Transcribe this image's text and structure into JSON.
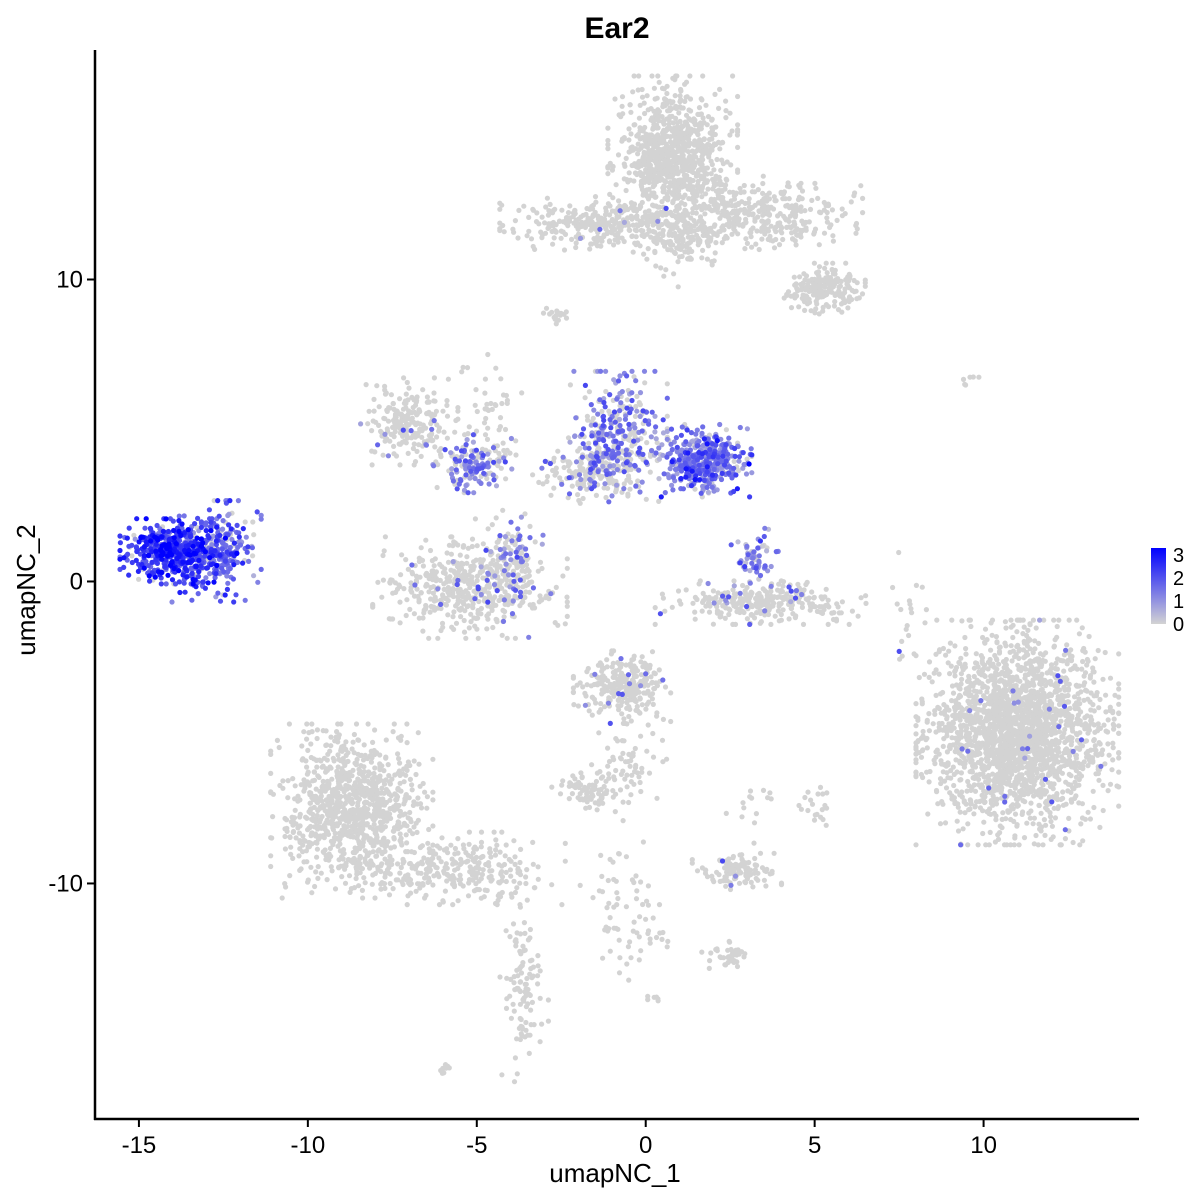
{
  "chart_data": {
    "type": "scatter",
    "title": "Ear2",
    "xlabel": "umapNC_1",
    "ylabel": "umapNC_2",
    "xlim": [
      -16.3,
      14.6
    ],
    "ylim": [
      -17.8,
      17.6
    ],
    "x_ticks": [
      -15,
      -10,
      -5,
      0,
      5,
      10
    ],
    "x_tick_labels": [
      "-15",
      "-10",
      "-5",
      "0",
      "5",
      "10"
    ],
    "y_ticks": [
      -10,
      0,
      10
    ],
    "y_tick_labels": [
      "-10",
      "0",
      "10"
    ],
    "grid": false,
    "colors": {
      "low": "#d3d3d3",
      "high": "#0000ff"
    },
    "legend": {
      "placement": "right",
      "min": 0,
      "max": 3.3,
      "ticks": [
        0,
        1,
        2,
        3
      ],
      "tick_labels": [
        "0",
        "1",
        "2",
        "3"
      ]
    },
    "clusters": [
      {
        "cx": 11.0,
        "cy": -5.0,
        "sx": 1.25,
        "sy": 1.55,
        "n": 2200,
        "expr": 0.02,
        "seed": 11
      },
      {
        "cx": -8.7,
        "cy": -7.6,
        "sx": 1.0,
        "sy": 1.2,
        "n": 1000,
        "expr": 0.0,
        "seed": 12
      },
      {
        "cx": -5.5,
        "cy": -9.5,
        "sx": 1.3,
        "sy": 0.5,
        "n": 260,
        "expr": 0.0,
        "seed": 13
      },
      {
        "cx": -3.6,
        "cy": -13.5,
        "sx": 0.3,
        "sy": 1.4,
        "n": 110,
        "expr": 0.0,
        "seed": 14
      },
      {
        "cx": 0.8,
        "cy": 14.1,
        "sx": 0.8,
        "sy": 1.1,
        "n": 900,
        "expr": 0.0,
        "seed": 15
      },
      {
        "cx": 3.3,
        "cy": 12.1,
        "sx": 1.3,
        "sy": 0.55,
        "n": 360,
        "expr": 0.0,
        "seed": 16
      },
      {
        "cx": 5.3,
        "cy": 9.7,
        "sx": 0.5,
        "sy": 0.35,
        "n": 200,
        "expr": 0.0,
        "seed": 17
      },
      {
        "cx": -1.2,
        "cy": 11.8,
        "sx": 1.3,
        "sy": 0.4,
        "n": 320,
        "expr": 0.02,
        "seed": 18
      },
      {
        "cx": 1.1,
        "cy": 11.2,
        "sx": 0.5,
        "sy": 0.6,
        "n": 120,
        "expr": 0.0,
        "seed": 19
      },
      {
        "cx": -14.0,
        "cy": 1.0,
        "sx": 0.65,
        "sy": 0.45,
        "n": 480,
        "expr": 2.4,
        "seed": 20
      },
      {
        "cx": -12.7,
        "cy": 1.0,
        "sx": 0.55,
        "sy": 0.7,
        "n": 260,
        "expr": 1.7,
        "seed": 21
      },
      {
        "cx": 1.7,
        "cy": 4.0,
        "sx": 0.6,
        "sy": 0.5,
        "n": 420,
        "expr": 1.4,
        "seed": 22
      },
      {
        "cx": -0.8,
        "cy": 4.8,
        "sx": 0.6,
        "sy": 0.9,
        "n": 320,
        "expr": 0.7,
        "seed": 23
      },
      {
        "cx": -1.7,
        "cy": 3.7,
        "sx": 0.8,
        "sy": 0.5,
        "n": 160,
        "expr": 0.3,
        "seed": 24
      },
      {
        "cx": -7.0,
        "cy": 5.3,
        "sx": 0.6,
        "sy": 0.6,
        "n": 210,
        "expr": 0.05,
        "seed": 25
      },
      {
        "cx": -5.1,
        "cy": 3.9,
        "sx": 0.5,
        "sy": 0.4,
        "n": 130,
        "expr": 0.8,
        "seed": 26
      },
      {
        "cx": -5.2,
        "cy": -0.2,
        "sx": 1.2,
        "sy": 0.7,
        "n": 480,
        "expr": 0.05,
        "seed": 27
      },
      {
        "cx": -4.0,
        "cy": 0.8,
        "sx": 0.4,
        "sy": 0.6,
        "n": 100,
        "expr": 0.6,
        "seed": 28
      },
      {
        "cx": 3.4,
        "cy": -0.7,
        "sx": 1.3,
        "sy": 0.3,
        "n": 300,
        "expr": 0.05,
        "seed": 29
      },
      {
        "cx": 3.2,
        "cy": 0.8,
        "sx": 0.3,
        "sy": 0.4,
        "n": 60,
        "expr": 1.2,
        "seed": 30
      },
      {
        "cx": -0.7,
        "cy": -3.5,
        "sx": 0.6,
        "sy": 0.5,
        "n": 260,
        "expr": 0.05,
        "seed": 31
      },
      {
        "cx": -1.7,
        "cy": -6.9,
        "sx": 0.45,
        "sy": 0.3,
        "n": 80,
        "expr": 0.0,
        "seed": 32
      },
      {
        "cx": 2.7,
        "cy": -9.6,
        "sx": 0.55,
        "sy": 0.25,
        "n": 110,
        "expr": 0.05,
        "seed": 33
      },
      {
        "cx": 2.5,
        "cy": -12.4,
        "sx": 0.35,
        "sy": 0.2,
        "n": 40,
        "expr": 0.0,
        "seed": 34
      },
      {
        "cx": -0.5,
        "cy": -6.0,
        "sx": 0.6,
        "sy": 0.8,
        "n": 60,
        "expr": 0.0,
        "seed": 35
      },
      {
        "cx": -0.5,
        "cy": -10.8,
        "sx": 0.6,
        "sy": 1.0,
        "n": 70,
        "expr": 0.0,
        "seed": 36
      },
      {
        "cx": 7.8,
        "cy": -1.2,
        "sx": 0.3,
        "sy": 0.9,
        "n": 20,
        "expr": 0.05,
        "seed": 37
      },
      {
        "cx": -4.5,
        "cy": 5.0,
        "sx": 0.4,
        "sy": 1.4,
        "n": 60,
        "expr": 0.0,
        "seed": 38
      },
      {
        "cx": -2.6,
        "cy": 8.8,
        "sx": 0.2,
        "sy": 0.15,
        "n": 18,
        "expr": 0.0,
        "seed": 39
      },
      {
        "cx": 9.6,
        "cy": 6.7,
        "sx": 0.2,
        "sy": 0.1,
        "n": 6,
        "expr": 0.0,
        "seed": 40
      },
      {
        "cx": 5.0,
        "cy": -7.5,
        "sx": 0.3,
        "sy": 0.4,
        "n": 20,
        "expr": 0.0,
        "seed": 41
      },
      {
        "cx": 3.2,
        "cy": -7.6,
        "sx": 0.4,
        "sy": 0.6,
        "n": 14,
        "expr": 0.0,
        "seed": 42
      },
      {
        "cx": 0.3,
        "cy": -13.9,
        "sx": 0.1,
        "sy": 0.1,
        "n": 6,
        "expr": 0.0,
        "seed": 43
      },
      {
        "cx": -6.0,
        "cy": -16.2,
        "sx": 0.15,
        "sy": 0.1,
        "n": 8,
        "expr": 0.0,
        "seed": 44
      }
    ]
  }
}
